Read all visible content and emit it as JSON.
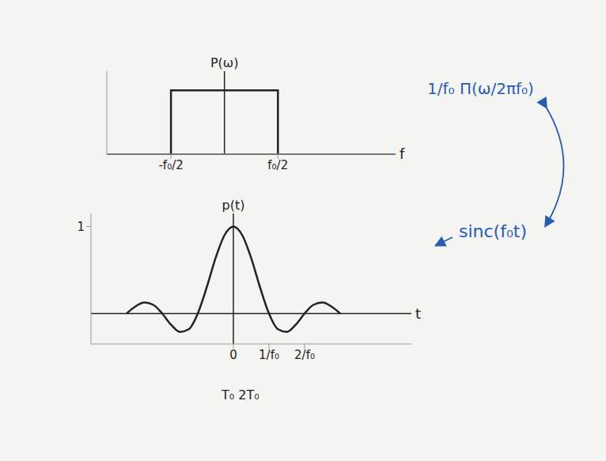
{
  "chart_data": [
    {
      "type": "line",
      "y_label": "P(ω)",
      "x_label": "f",
      "x": [
        -0.5,
        -0.5,
        0.5,
        0.5
      ],
      "values": [
        0,
        1,
        1,
        0
      ],
      "xlim": [
        -1.1,
        1.6
      ],
      "xticks": [
        {
          "value": -0.5,
          "label": "-f₀/2"
        },
        {
          "value": 0.5,
          "label": "f₀/2"
        }
      ],
      "ylim": [
        0,
        1.3
      ],
      "yticks": [],
      "tick_labels": "x",
      "color": "#222222",
      "annotations": [
        "1/f₀ Π(ω/2πf₀)"
      ]
    },
    {
      "type": "line",
      "y_label": "p(t)",
      "x_label": "t",
      "x": [
        -3,
        -2.75,
        -2.5,
        -2.25,
        -2,
        -1.75,
        -1.5,
        -1.25,
        -1,
        -0.75,
        -0.5,
        -0.25,
        0,
        0.25,
        0.5,
        0.75,
        1,
        1.25,
        1.5,
        1.75,
        2,
        2.25,
        2.5,
        2.75,
        3
      ],
      "values": [
        0,
        0.082,
        0.127,
        0.1,
        0,
        -0.129,
        -0.212,
        -0.18,
        0,
        0.3,
        0.637,
        0.9,
        1,
        0.9,
        0.637,
        0.3,
        0,
        -0.18,
        -0.212,
        -0.129,
        0,
        0.1,
        0.127,
        0.082,
        0
      ],
      "xlim": [
        -4,
        5
      ],
      "xticks": [
        0,
        {
          "value": 1,
          "label": "1/f₀"
        },
        {
          "value": 2,
          "label": "2/f₀"
        }
      ],
      "ylim": [
        -0.35,
        1.15
      ],
      "yticks": [
        1
      ],
      "color": "#222222",
      "annotations": [
        "sinc(f₀t)",
        "T₀ 2T₀"
      ]
    }
  ]
}
